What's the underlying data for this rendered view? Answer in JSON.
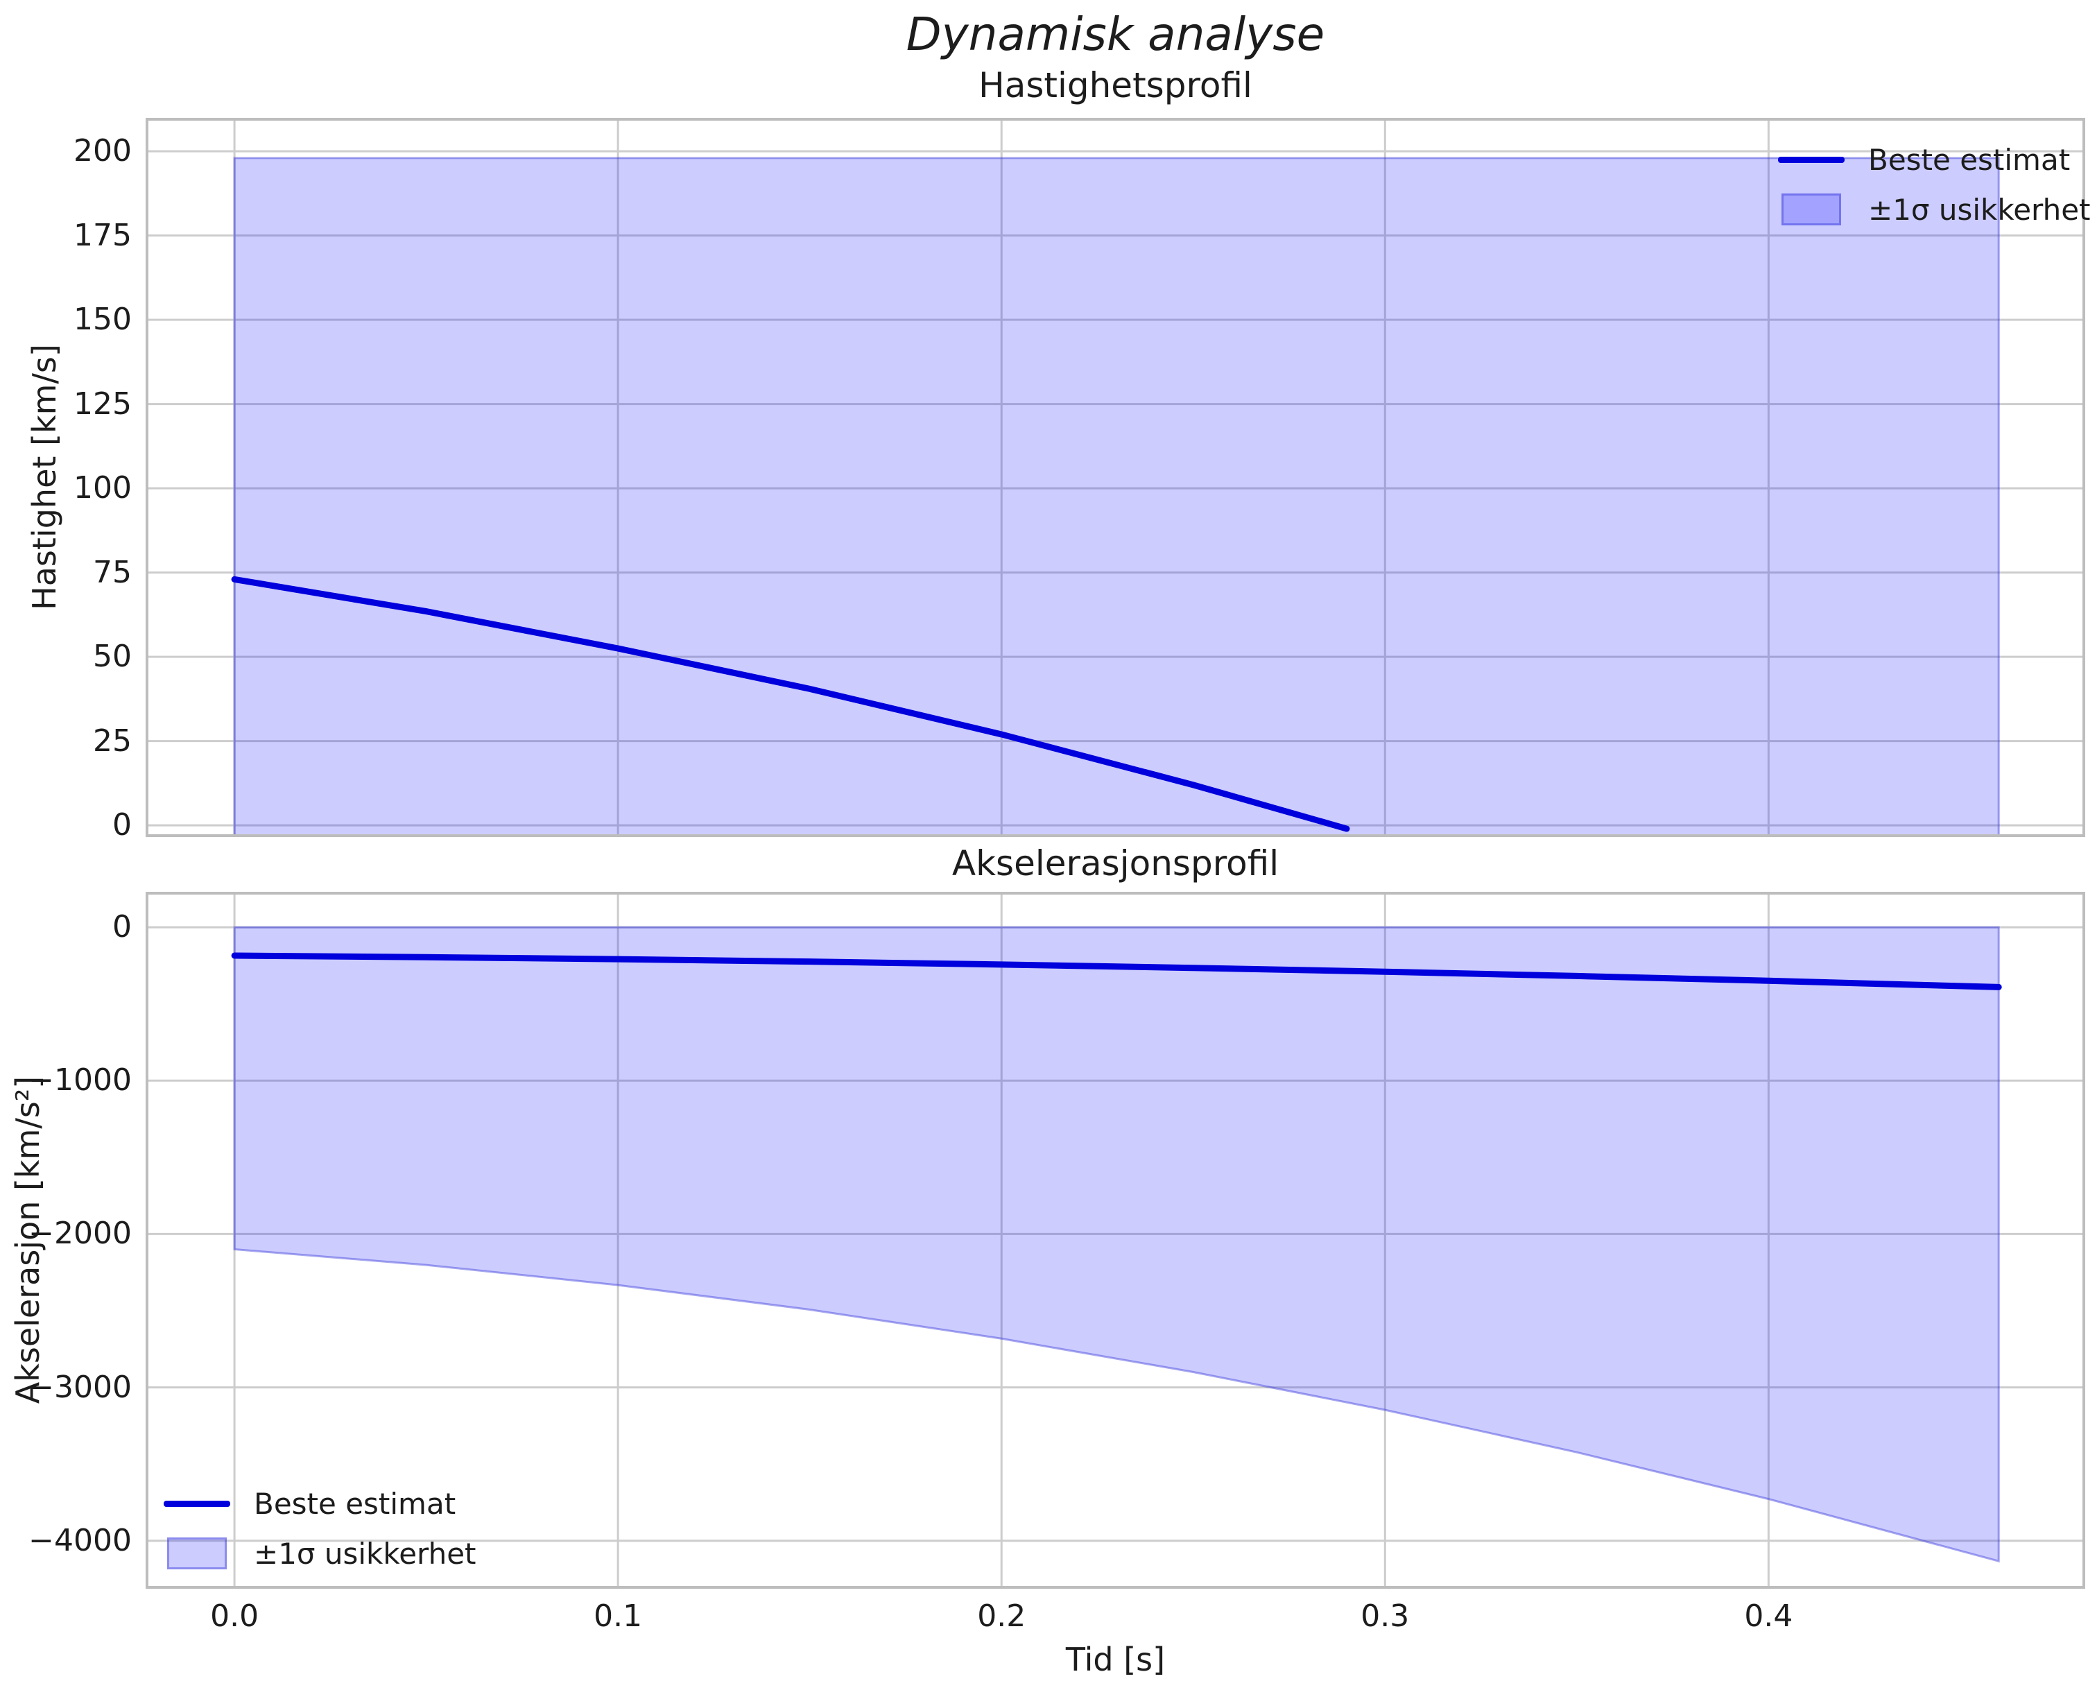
{
  "figure": {
    "suptitle": "Dynamisk analyse",
    "xlabel": "Tid [s]"
  },
  "colors": {
    "line": "#0000dd",
    "band_fill": "rgba(0,0,255,0.2)",
    "band_edge": "rgba(60,60,220,0.45)",
    "grid": "#cdcdcd",
    "spine": "#bdbdbd",
    "text": "#1c1c1c"
  },
  "chart_data": [
    {
      "type": "line",
      "title": "Hastighetsprofil",
      "ylabel": "Hastighet [km/s]",
      "xlabel": "",
      "xlim": [
        -0.0228,
        0.4822
      ],
      "ylim": [
        -3.05,
        209.5
      ],
      "xticks": [
        0,
        0.1,
        0.2,
        0.3,
        0.4
      ],
      "xticklabels": [],
      "yticks": [
        0,
        25,
        50,
        75,
        100,
        125,
        150,
        175,
        200
      ],
      "yticklabels": [
        "0",
        "25",
        "50",
        "75",
        "100",
        "125",
        "150",
        "175",
        "200"
      ],
      "grid": true,
      "legend": {
        "loc": "upper right",
        "entries": [
          {
            "swatch": "line",
            "label": "Beste estimat"
          },
          {
            "swatch": "patch",
            "label": "±1σ usikkerhet"
          }
        ]
      },
      "series": [
        {
          "name": "Beste estimat",
          "x": [
            0,
            0.05,
            0.1,
            0.15,
            0.2,
            0.25,
            0.29
          ],
          "y": [
            73,
            63.5,
            52.5,
            40.5,
            27,
            12,
            -1
          ]
        }
      ],
      "band": {
        "name": "±1σ usikkerhet",
        "x": [
          0,
          0.46
        ],
        "upper": [
          198,
          198
        ],
        "lower": [
          -60,
          -60
        ]
      }
    },
    {
      "type": "line",
      "title": "Akselerasjonsprofil",
      "ylabel": "Akselerasjon [km/s²]",
      "xlabel": "Tid [s]",
      "xlim": [
        -0.0228,
        0.4822
      ],
      "ylim": [
        -4304,
        222
      ],
      "xticks": [
        0,
        0.1,
        0.2,
        0.3,
        0.4
      ],
      "xticklabels": [
        "0.0",
        "0.1",
        "0.2",
        "0.3",
        "0.4"
      ],
      "yticks": [
        0,
        -1000,
        -2000,
        -3000,
        -4000
      ],
      "yticklabels": [
        "0",
        "−1000",
        "−2000",
        "−3000",
        "−4000"
      ],
      "grid": true,
      "legend": {
        "loc": "lower left",
        "entries": [
          {
            "swatch": "line",
            "label": "Beste estimat"
          },
          {
            "swatch": "patch",
            "label": "±1σ usikkerhet"
          }
        ]
      },
      "series": [
        {
          "name": "Beste estimat",
          "x": [
            0,
            0.05,
            0.1,
            0.15,
            0.2,
            0.25,
            0.3,
            0.35,
            0.4,
            0.46
          ],
          "y": [
            -185,
            -195,
            -208,
            -224,
            -243,
            -265,
            -290,
            -318,
            -349,
            -390
          ]
        }
      ],
      "band": {
        "name": "±1σ usikkerhet",
        "x": [
          0,
          0.05,
          0.1,
          0.15,
          0.2,
          0.25,
          0.3,
          0.35,
          0.4,
          0.46
        ],
        "upper": [
          0,
          0,
          0,
          0,
          0,
          0,
          0,
          0,
          0,
          0
        ],
        "lower": [
          -2100,
          -2202,
          -2333,
          -2493,
          -2682,
          -2900,
          -3147,
          -3423,
          -3728,
          -4133
        ]
      }
    }
  ]
}
